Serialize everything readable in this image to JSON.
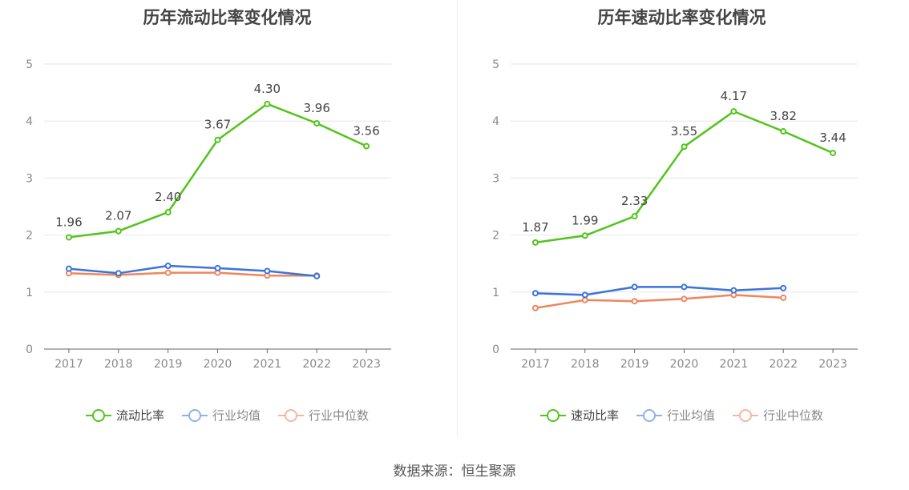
{
  "source_text": "数据来源：恒生聚源",
  "colors": {
    "company": "#52c41a",
    "avg": "#3a73d9",
    "median": "#f0855c",
    "avg_legend": "#8fb0ee",
    "median_legend": "#f5b6a0"
  },
  "chart_data": [
    {
      "type": "line",
      "title": "历年流动比率变化情况",
      "categories": [
        "2017",
        "2018",
        "2019",
        "2020",
        "2021",
        "2022",
        "2023"
      ],
      "ylim": [
        0,
        5
      ],
      "yticks": [
        "0",
        "1",
        "2",
        "3",
        "4",
        "5"
      ],
      "series": [
        {
          "name": "流动比率",
          "values": [
            1.96,
            2.07,
            2.4,
            3.67,
            4.3,
            3.96,
            3.56
          ],
          "labels": [
            "1.96",
            "2.07",
            "2.40",
            "3.67",
            "4.30",
            "3.96",
            "3.56"
          ]
        },
        {
          "name": "行业均值",
          "values": [
            1.41,
            1.33,
            1.46,
            1.42,
            1.37,
            1.28,
            null
          ]
        },
        {
          "name": "行业中位数",
          "values": [
            1.33,
            1.3,
            1.34,
            1.34,
            1.29,
            1.29,
            null
          ]
        }
      ]
    },
    {
      "type": "line",
      "title": "历年速动比率变化情况",
      "categories": [
        "2017",
        "2018",
        "2019",
        "2020",
        "2021",
        "2022",
        "2023"
      ],
      "ylim": [
        0,
        5
      ],
      "yticks": [
        "0",
        "1",
        "2",
        "3",
        "4",
        "5"
      ],
      "series": [
        {
          "name": "速动比率",
          "values": [
            1.87,
            1.99,
            2.33,
            3.55,
            4.17,
            3.82,
            3.44
          ],
          "labels": [
            "1.87",
            "1.99",
            "2.33",
            "3.55",
            "4.17",
            "3.82",
            "3.44"
          ]
        },
        {
          "name": "行业均值",
          "values": [
            0.98,
            0.95,
            1.09,
            1.09,
            1.03,
            1.07,
            null
          ]
        },
        {
          "name": "行业中位数",
          "values": [
            0.72,
            0.86,
            0.84,
            0.88,
            0.95,
            0.9,
            null
          ]
        }
      ]
    }
  ]
}
